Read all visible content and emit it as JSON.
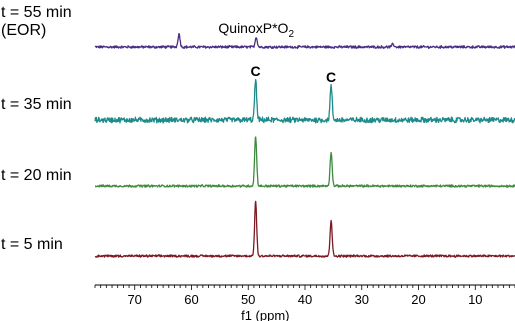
{
  "chart_data": {
    "type": "line",
    "xlabel": "f1 (ppm)",
    "x_reversed": true,
    "xlim": [
      77,
      3
    ],
    "xticks": [
      70,
      60,
      50,
      40,
      30,
      20,
      10
    ],
    "grid": false,
    "series": [
      {
        "name": "t = 55 min",
        "label_lines": [
          "t = 55 min",
          "(EOR)"
        ],
        "color": "#4b2e83",
        "noise": 1.1,
        "peaks": [
          {
            "ppm": 62.2,
            "height": 13
          },
          {
            "ppm": 48.6,
            "height": 10
          },
          {
            "ppm": 24.5,
            "height": 3
          }
        ],
        "annotations": [
          {
            "ppm": 48.6,
            "text": "QuinoxP*O",
            "subscript": "2"
          }
        ]
      },
      {
        "name": "t = 35 min",
        "label_lines": [
          "t = 35 min"
        ],
        "color": "#1f8a8a",
        "noise": 2.4,
        "peaks": [
          {
            "ppm": 48.7,
            "height": 40
          },
          {
            "ppm": 35.4,
            "height": 34
          }
        ],
        "annotations": [
          {
            "ppm": 48.7,
            "text": "C",
            "bold": true
          },
          {
            "ppm": 35.4,
            "text": "C",
            "bold": true
          }
        ]
      },
      {
        "name": "t = 20 min",
        "label_lines": [
          "t = 20 min"
        ],
        "color": "#3f8a3f",
        "noise": 1.0,
        "peaks": [
          {
            "ppm": 48.7,
            "height": 50
          },
          {
            "ppm": 35.4,
            "height": 34
          }
        ],
        "annotations": []
      },
      {
        "name": "t = 5 min",
        "label_lines": [
          "t = 5 min"
        ],
        "color": "#7a1a22",
        "noise": 1.0,
        "peaks": [
          {
            "ppm": 48.7,
            "height": 55
          },
          {
            "ppm": 35.4,
            "height": 36
          }
        ],
        "annotations": []
      }
    ]
  }
}
